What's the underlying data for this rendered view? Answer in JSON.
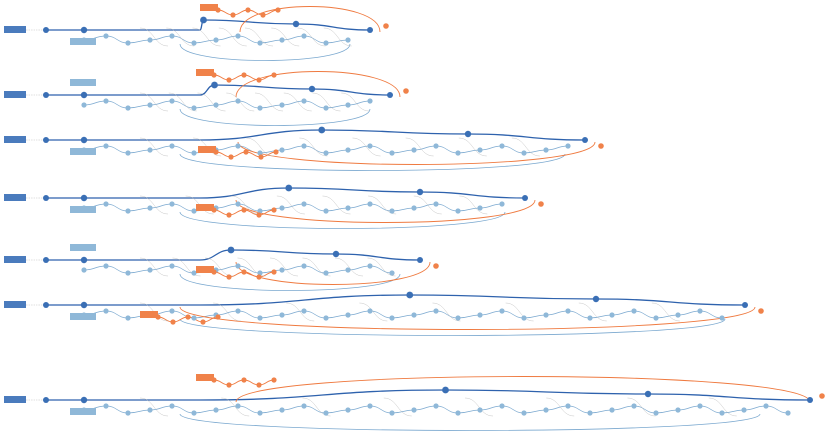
{
  "diagram": {
    "rows": [
      {
        "row_label_lines": [
          "",
          ""
        ],
        "node_text": [
          "",
          "",
          "",
          "",
          "",
          ""
        ],
        "ref_box_lines": [
          "",
          ""
        ],
        "alert_box_lines": [
          "",
          ""
        ]
      },
      {
        "row_label_lines": [
          "",
          ""
        ],
        "node_text": [
          "",
          "",
          "",
          "",
          "",
          ""
        ],
        "ref_box_lines": [
          "",
          ""
        ],
        "alert_box_lines": [
          "",
          ""
        ]
      },
      {
        "row_label_lines": [
          "",
          ""
        ],
        "node_text": [
          "",
          "",
          "",
          "",
          "",
          ""
        ],
        "ref_box_lines": [
          "",
          ""
        ],
        "alert_box_lines": [
          "",
          ""
        ]
      },
      {
        "row_label_lines": [
          "",
          ""
        ],
        "node_text": [
          "",
          "",
          "",
          "",
          "",
          ""
        ],
        "ref_box_lines": [
          "",
          ""
        ],
        "alert_box_lines": [
          "",
          ""
        ]
      },
      {
        "row_label_lines": [
          "",
          ""
        ],
        "node_text": [
          "",
          "",
          "",
          "",
          "",
          ""
        ],
        "ref_box_lines": [
          "",
          ""
        ],
        "alert_box_lines": [
          "",
          ""
        ]
      },
      {
        "row_label_lines": [
          "",
          ""
        ],
        "node_text": [
          "",
          "",
          "",
          "",
          "",
          ""
        ],
        "ref_box_lines": [
          "",
          ""
        ],
        "alert_box_lines": [
          "",
          ""
        ]
      },
      {
        "row_label_lines": [
          "",
          ""
        ],
        "node_text": [
          "",
          "",
          "",
          "",
          "",
          ""
        ],
        "ref_box_lines": [
          "",
          ""
        ],
        "alert_box_lines": [
          "",
          ""
        ]
      }
    ]
  },
  "colors": {
    "background": "#ffffff",
    "main_node": "#3a6fb5",
    "secondary_node": "#8fb8d8",
    "alert_node": "#f0824a",
    "main_edge": "#2e62ad",
    "secondary_edge": "#7aa8cf",
    "alert_edge": "#ef7a40",
    "thin_edge": "#b8b8b8",
    "dash_edge": "#c0c0c0",
    "label_bg": "#4a7bbd",
    "ref_bg": "#8fb8d8",
    "alert_bg": "#f0824a",
    "node_text": "#ffffff"
  }
}
